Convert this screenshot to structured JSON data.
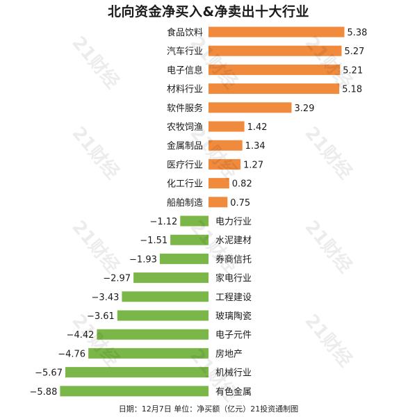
{
  "chart_data": {
    "type": "bar",
    "orientation": "horizontal",
    "title": "北向资金净买入&净卖出十大行业",
    "categories": [
      "食品饮料",
      "汽车行业",
      "电子信息",
      "材料行业",
      "软件服务",
      "农牧饲渔",
      "金属制品",
      "医疗行业",
      "化工行业",
      "船舶制造",
      "电力行业",
      "水泥建材",
      "券商信托",
      "家电行业",
      "工程建设",
      "玻璃陶瓷",
      "电子元件",
      "房地产",
      "机械行业",
      "有色金属"
    ],
    "values": [
      5.38,
      5.27,
      5.21,
      5.18,
      3.29,
      1.42,
      1.34,
      1.27,
      0.82,
      0.75,
      -1.12,
      -1.51,
      -1.93,
      -2.97,
      -3.43,
      -3.61,
      -4.42,
      -4.76,
      -5.67,
      -5.88
    ],
    "value_labels": [
      "5.38",
      "5.27",
      "5.21",
      "5.18",
      "3.29",
      "1.42",
      "1.34",
      "1.27",
      "0.82",
      "0.75",
      "−1.12",
      "−1.51",
      "−1.93",
      "−2.97",
      "−3.43",
      "−3.61",
      "−4.42",
      "−4.76",
      "−5.67",
      "−5.88"
    ],
    "positive_color": "#f08a3c",
    "negative_color": "#7ab648",
    "grid": false,
    "legend": "none"
  },
  "footer": "日期：12月7日 单位：净买额（亿元）21投资通制图",
  "watermark": "21财经"
}
